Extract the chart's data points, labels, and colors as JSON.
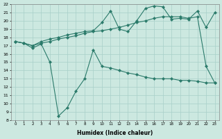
{
  "xlabel": "Humidex (Indice chaleur)",
  "bg_color": "#cce8e0",
  "grid_color": "#a8cfc8",
  "line_color": "#2a7a6a",
  "xlim": [
    -0.5,
    23.5
  ],
  "ylim": [
    8,
    22
  ],
  "xticks": [
    0,
    1,
    2,
    3,
    4,
    5,
    6,
    7,
    8,
    9,
    10,
    11,
    12,
    13,
    14,
    15,
    16,
    17,
    18,
    19,
    20,
    21,
    22,
    23
  ],
  "yticks": [
    8,
    9,
    10,
    11,
    12,
    13,
    14,
    15,
    16,
    17,
    18,
    19,
    20,
    21,
    22
  ],
  "line1_x": [
    0,
    1,
    2,
    3,
    4,
    5,
    6,
    7,
    8,
    9,
    10,
    11,
    12,
    13,
    14,
    15,
    16,
    17,
    18,
    19,
    20,
    21,
    22,
    23
  ],
  "line1_y": [
    17.5,
    17.3,
    16.7,
    17.2,
    15.0,
    8.5,
    9.5,
    11.5,
    13.0,
    16.5,
    14.5,
    14.3,
    14.0,
    13.7,
    13.5,
    13.2,
    13.0,
    13.0,
    13.0,
    12.8,
    12.8,
    12.7,
    12.5,
    12.5
  ],
  "line2_x": [
    0,
    1,
    2,
    3,
    4,
    5,
    6,
    7,
    8,
    9,
    10,
    11,
    12,
    13,
    14,
    15,
    16,
    17,
    18,
    19,
    20,
    21,
    22,
    23
  ],
  "line2_y": [
    17.5,
    17.3,
    17.0,
    17.3,
    17.5,
    17.8,
    18.0,
    18.2,
    18.5,
    18.7,
    18.8,
    19.0,
    19.2,
    19.5,
    19.8,
    20.0,
    20.3,
    20.5,
    20.5,
    20.5,
    20.3,
    20.5,
    14.5,
    12.5
  ],
  "line3_x": [
    0,
    1,
    2,
    3,
    4,
    5,
    6,
    7,
    8,
    9,
    10,
    11,
    12,
    13,
    14,
    15,
    16,
    17,
    18,
    19,
    20,
    21,
    22,
    23
  ],
  "line3_y": [
    17.5,
    17.3,
    17.0,
    17.5,
    17.8,
    18.0,
    18.3,
    18.5,
    18.7,
    18.8,
    19.8,
    21.2,
    19.0,
    18.7,
    20.0,
    21.5,
    21.8,
    21.7,
    20.2,
    20.3,
    20.2,
    21.2,
    19.2,
    21.0
  ]
}
